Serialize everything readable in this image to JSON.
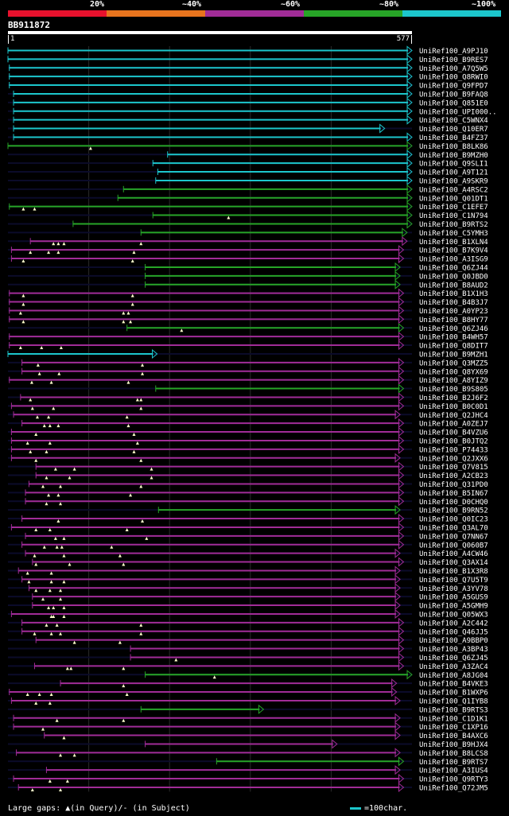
{
  "legend": {
    "labels": [
      "20%",
      "~40%",
      "~60%",
      "~80%",
      "~100%"
    ],
    "colors": [
      "#e8112d",
      "#e8741e",
      "#a12c97",
      "#27a527",
      "#1cc6cc"
    ]
  },
  "query": {
    "id": "BB911872",
    "start": "1",
    "end": "577"
  },
  "footer": {
    "gap_legend": "Large gaps: ▲(in Query)/- (in Subject)",
    "scale": "=100char."
  },
  "hits": [
    {
      "label": "UniRef100_A9PJ10",
      "color": "cyan",
      "start": 0,
      "end": 577,
      "tri": []
    },
    {
      "label": "UniRef100_B9RES7",
      "color": "cyan",
      "start": 0,
      "end": 577,
      "tri": []
    },
    {
      "label": "UniRef100_A7Q5W5",
      "color": "cyan",
      "start": 2,
      "end": 577,
      "tri": []
    },
    {
      "label": "UniRef100_Q8RWI0",
      "color": "cyan",
      "start": 2,
      "end": 577,
      "tri": []
    },
    {
      "label": "UniRef100_Q9FPD7",
      "color": "cyan",
      "start": 2,
      "end": 577,
      "tri": []
    },
    {
      "label": "UniRef100_B9FAQ8",
      "color": "cyan",
      "start": 8,
      "end": 577,
      "tri": []
    },
    {
      "label": "UniRef100_Q851E0",
      "color": "cyan",
      "start": 8,
      "end": 577,
      "tri": []
    },
    {
      "label": "UniRef100_UPI000..",
      "color": "cyan",
      "start": 8,
      "end": 577,
      "tri": []
    },
    {
      "label": "UniRef100_C5WNX4",
      "color": "cyan",
      "start": 8,
      "end": 577,
      "tri": []
    },
    {
      "label": "UniRef100_Q10ER7",
      "color": "cyan",
      "start": 8,
      "end": 538,
      "tri": []
    },
    {
      "label": "UniRef100_B4FZ37",
      "color": "cyan",
      "start": 8,
      "end": 577,
      "tri": []
    },
    {
      "label": "UniRef100_B8LK86",
      "color": "green",
      "start": 0,
      "end": 577,
      "tri": [
        118
      ]
    },
    {
      "label": "UniRef100_B9MZH0",
      "color": "cyan",
      "start": 228,
      "end": 577,
      "tri": []
    },
    {
      "label": "UniRef100_Q9SLI1",
      "color": "cyan",
      "start": 207,
      "end": 577,
      "tri": []
    },
    {
      "label": "UniRef100_A9T121",
      "color": "cyan",
      "start": 214,
      "end": 577,
      "tri": []
    },
    {
      "label": "UniRef100_A9SKR9",
      "color": "cyan",
      "start": 211,
      "end": 577,
      "tri": []
    },
    {
      "label": "UniRef100_A4RSC2",
      "color": "green",
      "start": 165,
      "end": 577,
      "tri": []
    },
    {
      "label": "UniRef100_Q01DT1",
      "color": "green",
      "start": 157,
      "end": 577,
      "tri": []
    },
    {
      "label": "UniRef100_C1EFE7",
      "color": "green",
      "start": 2,
      "end": 577,
      "tri": [
        22,
        38
      ]
    },
    {
      "label": "UniRef100_C1N794",
      "color": "green",
      "start": 207,
      "end": 577,
      "tri": [
        315
      ]
    },
    {
      "label": "UniRef100_B9RTS2",
      "color": "green",
      "start": 93,
      "end": 577,
      "tri": []
    },
    {
      "label": "UniRef100_C5YMH3",
      "color": "green",
      "start": 190,
      "end": 570,
      "tri": []
    },
    {
      "label": "UniRef100_B1XLN4",
      "color": "purple",
      "start": 32,
      "end": 570,
      "tri": [
        65,
        72,
        80,
        190
      ]
    },
    {
      "label": "UniRef100_B7K9V4",
      "color": "purple",
      "start": 5,
      "end": 565,
      "tri": [
        32,
        58,
        72,
        180
      ]
    },
    {
      "label": "UniRef100_A3ISG9",
      "color": "purple",
      "start": 5,
      "end": 565,
      "tri": [
        22,
        178
      ]
    },
    {
      "label": "UniRef100_Q6ZJ44",
      "color": "green",
      "start": 196,
      "end": 560,
      "tri": []
    },
    {
      "label": "UniRef100_Q0JBD0",
      "color": "green",
      "start": 196,
      "end": 560,
      "tri": []
    },
    {
      "label": "UniRef100_B8AUD2",
      "color": "green",
      "start": 196,
      "end": 560,
      "tri": []
    },
    {
      "label": "UniRef100_B1X1H3",
      "color": "purple",
      "start": 2,
      "end": 565,
      "tri": [
        22,
        178
      ]
    },
    {
      "label": "UniRef100_B4B3J7",
      "color": "purple",
      "start": 2,
      "end": 565,
      "tri": [
        22,
        178
      ]
    },
    {
      "label": "UniRef100_A0YP23",
      "color": "purple",
      "start": 2,
      "end": 565,
      "tri": [
        18,
        165,
        172
      ]
    },
    {
      "label": "UniRef100_B8HY77",
      "color": "purple",
      "start": 2,
      "end": 565,
      "tri": [
        22,
        165,
        175
      ]
    },
    {
      "label": "UniRef100_Q6ZJ46",
      "color": "green",
      "start": 170,
      "end": 565,
      "tri": [
        248
      ]
    },
    {
      "label": "UniRef100_B4WH57",
      "color": "purple",
      "start": 2,
      "end": 565,
      "tri": []
    },
    {
      "label": "UniRef100_Q8DIT7",
      "color": "purple",
      "start": 2,
      "end": 565,
      "tri": [
        18,
        48,
        76
      ]
    },
    {
      "label": "UniRef100_B9MZH1",
      "color": "cyan",
      "start": 0,
      "end": 213,
      "tri": []
    },
    {
      "label": "UniRef100_Q3MZZ5",
      "color": "purple",
      "start": 20,
      "end": 565,
      "tri": [
        43,
        192
      ]
    },
    {
      "label": "UniRef100_Q8YX69",
      "color": "purple",
      "start": 20,
      "end": 565,
      "tri": [
        45,
        73,
        192
      ]
    },
    {
      "label": "UniRef100_A8YIZ9",
      "color": "purple",
      "start": 2,
      "end": 565,
      "tri": [
        34,
        62,
        172
      ]
    },
    {
      "label": "UniRef100_B9S805",
      "color": "green",
      "start": 211,
      "end": 565,
      "tri": []
    },
    {
      "label": "UniRef100_B2J6F2",
      "color": "purple",
      "start": 18,
      "end": 565,
      "tri": [
        32,
        185,
        190
      ]
    },
    {
      "label": "UniRef100_B0C0D1",
      "color": "purple",
      "start": 5,
      "end": 565,
      "tri": [
        35,
        65,
        190
      ]
    },
    {
      "label": "UniRef100_Q2JHC4",
      "color": "purple",
      "start": 8,
      "end": 560,
      "tri": [
        42,
        58,
        170
      ]
    },
    {
      "label": "UniRef100_A0ZEJ7",
      "color": "purple",
      "start": 20,
      "end": 565,
      "tri": [
        52,
        60,
        72,
        172
      ]
    },
    {
      "label": "UniRef100_B4VZU6",
      "color": "purple",
      "start": 5,
      "end": 565,
      "tri": [
        40,
        180
      ]
    },
    {
      "label": "UniRef100_B0JTQ2",
      "color": "purple",
      "start": 5,
      "end": 565,
      "tri": [
        28,
        60,
        185
      ]
    },
    {
      "label": "UniRef100_P74433",
      "color": "purple",
      "start": 5,
      "end": 565,
      "tri": [
        32,
        55,
        180
      ]
    },
    {
      "label": "UniRef100_Q2JXX6",
      "color": "purple",
      "start": 5,
      "end": 560,
      "tri": [
        40,
        190
      ]
    },
    {
      "label": "UniRef100_Q7V815",
      "color": "purple",
      "start": 40,
      "end": 565,
      "tri": [
        68,
        95,
        205
      ]
    },
    {
      "label": "UniRef100_A2CB23",
      "color": "purple",
      "start": 40,
      "end": 565,
      "tri": [
        55,
        88,
        205
      ]
    },
    {
      "label": "UniRef100_Q31PD0",
      "color": "purple",
      "start": 30,
      "end": 565,
      "tri": [
        50,
        75,
        190
      ]
    },
    {
      "label": "UniRef100_B5IN67",
      "color": "purple",
      "start": 25,
      "end": 565,
      "tri": [
        58,
        72,
        175
      ]
    },
    {
      "label": "UniRef100_D0CHQ0",
      "color": "purple",
      "start": 25,
      "end": 565,
      "tri": [
        55,
        75
      ]
    },
    {
      "label": "UniRef100_B9RN52",
      "color": "green",
      "start": 215,
      "end": 560,
      "tri": []
    },
    {
      "label": "UniRef100_Q0IC23",
      "color": "purple",
      "start": 20,
      "end": 565,
      "tri": [
        72,
        192
      ]
    },
    {
      "label": "UniRef100_Q3AL70",
      "color": "purple",
      "start": 5,
      "end": 565,
      "tri": [
        40,
        60,
        170
      ]
    },
    {
      "label": "UniRef100_Q7NN67",
      "color": "purple",
      "start": 25,
      "end": 565,
      "tri": [
        68,
        80,
        198
      ]
    },
    {
      "label": "UniRef100_Q060B7",
      "color": "purple",
      "start": 20,
      "end": 565,
      "tri": [
        52,
        70,
        77,
        148
      ]
    },
    {
      "label": "UniRef100_A4CW46",
      "color": "purple",
      "start": 25,
      "end": 560,
      "tri": [
        38,
        80,
        160
      ]
    },
    {
      "label": "UniRef100_Q3AX14",
      "color": "purple",
      "start": 35,
      "end": 565,
      "tri": [
        40,
        88,
        165
      ]
    },
    {
      "label": "UniRef100_B1X3R8",
      "color": "purple",
      "start": 15,
      "end": 560,
      "tri": [
        28,
        62
      ]
    },
    {
      "label": "UniRef100_Q7U5T9",
      "color": "purple",
      "start": 20,
      "end": 560,
      "tri": [
        30,
        62,
        80
      ]
    },
    {
      "label": "UniRef100_A3YV78",
      "color": "purple",
      "start": 30,
      "end": 560,
      "tri": [
        40,
        60,
        75
      ]
    },
    {
      "label": "UniRef100_A5GUS9",
      "color": "purple",
      "start": 35,
      "end": 560,
      "tri": [
        50,
        75
      ]
    },
    {
      "label": "UniRef100_A5GMH9",
      "color": "purple",
      "start": 35,
      "end": 560,
      "tri": [
        58,
        65,
        80
      ]
    },
    {
      "label": "UniRef100_Q05WX3",
      "color": "purple",
      "start": 5,
      "end": 560,
      "tri": [
        62,
        65,
        80
      ]
    },
    {
      "label": "UniRef100_A2C442",
      "color": "purple",
      "start": 20,
      "end": 565,
      "tri": [
        55,
        70,
        190
      ]
    },
    {
      "label": "UniRef100_Q46JJ5",
      "color": "purple",
      "start": 20,
      "end": 565,
      "tri": [
        38,
        62,
        75,
        190
      ]
    },
    {
      "label": "UniRef100_A9BBP0",
      "color": "purple",
      "start": 40,
      "end": 565,
      "tri": [
        95,
        160
      ]
    },
    {
      "label": "UniRef100_A3BP43",
      "color": "purple",
      "start": 175,
      "end": 565,
      "tri": []
    },
    {
      "label": "UniRef100_Q6ZJ45",
      "color": "purple",
      "start": 175,
      "end": 565,
      "tri": [
        240
      ]
    },
    {
      "label": "UniRef100_A3ZAC4",
      "color": "purple",
      "start": 38,
      "end": 565,
      "tri": [
        85,
        90,
        165
      ]
    },
    {
      "label": "UniRef100_A8JG04",
      "color": "green",
      "start": 196,
      "end": 577,
      "tri": [
        295
      ]
    },
    {
      "label": "UniRef100_B4VKE3",
      "color": "purple",
      "start": 75,
      "end": 555,
      "tri": [
        165
      ]
    },
    {
      "label": "UniRef100_B1WXP6",
      "color": "purple",
      "start": 2,
      "end": 555,
      "tri": [
        28,
        45,
        62,
        170
      ]
    },
    {
      "label": "UniRef100_Q1IYB8",
      "color": "purple",
      "start": 5,
      "end": 560,
      "tri": [
        40,
        60
      ]
    },
    {
      "label": "UniRef100_B9RTS3",
      "color": "green",
      "start": 190,
      "end": 365,
      "tri": []
    },
    {
      "label": "UniRef100_C1D1K1",
      "color": "purple",
      "start": 8,
      "end": 560,
      "tri": [
        70,
        165
      ]
    },
    {
      "label": "UniRef100_C1XP16",
      "color": "purple",
      "start": 8,
      "end": 560,
      "tri": [
        50
      ]
    },
    {
      "label": "UniRef100_B4AXC6",
      "color": "purple",
      "start": 52,
      "end": 560,
      "tri": [
        80
      ]
    },
    {
      "label": "UniRef100_B9HJX4",
      "color": "purple",
      "start": 196,
      "end": 470,
      "tri": []
    },
    {
      "label": "UniRef100_B8LCS8",
      "color": "purple",
      "start": 12,
      "end": 560,
      "tri": [
        75,
        95
      ]
    },
    {
      "label": "UniRef100_B9RTS7",
      "color": "green",
      "start": 298,
      "end": 565,
      "tri": []
    },
    {
      "label": "UniRef100_A3IUS4",
      "color": "purple",
      "start": 55,
      "end": 560,
      "tri": []
    },
    {
      "label": "UniRef100_Q9RTY3",
      "color": "purple",
      "start": 8,
      "end": 565,
      "tri": [
        60,
        85
      ]
    },
    {
      "label": "UniRef100_Q72JM5",
      "color": "purple",
      "start": 15,
      "end": 565,
      "tri": [
        35,
        75
      ]
    }
  ]
}
